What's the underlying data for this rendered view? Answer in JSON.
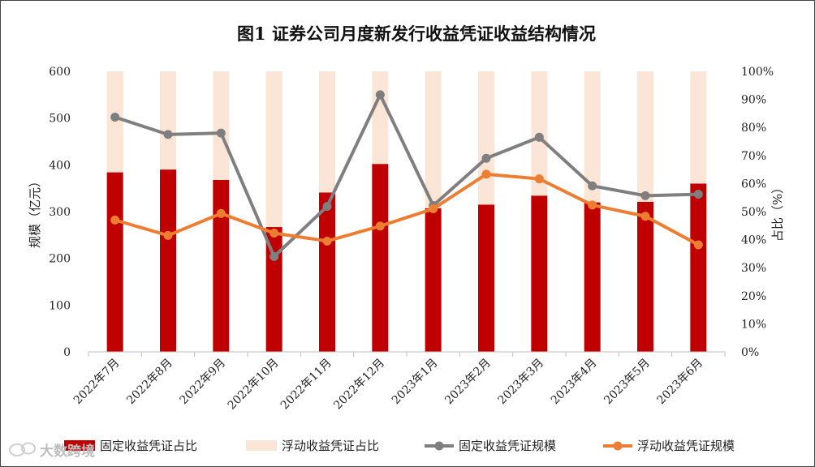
{
  "chart_data": {
    "type": "bar",
    "title": "图1  证券公司月度新发行收益凭证收益结构情况",
    "categories": [
      "2022年7月",
      "2022年8月",
      "2022年9月",
      "2022年10月",
      "2022年11月",
      "2022年12月",
      "2023年1月",
      "2023年2月",
      "2023年3月",
      "2023年4月",
      "2023年5月",
      "2023年6月"
    ],
    "y_left": {
      "label": "规模（亿元）",
      "ticks": [
        "0",
        "100",
        "200",
        "300",
        "400",
        "500",
        "600"
      ],
      "range": [
        0,
        600
      ]
    },
    "y_right": {
      "label": "占比（%）",
      "ticks": [
        "0%",
        "10%",
        "20%",
        "30%",
        "40%",
        "50%",
        "60%",
        "70%",
        "80%",
        "90%",
        "100%"
      ],
      "range": [
        0,
        100
      ]
    },
    "series": [
      {
        "name": "固定收益凭证占比",
        "type": "stacked-bar",
        "axis": "right",
        "color": "#c00000",
        "values": [
          64,
          65,
          61.3,
          44.5,
          56.8,
          67,
          51.2,
          52.5,
          55.7,
          53.3,
          53.5,
          60
        ]
      },
      {
        "name": "浮动收益凭证占比",
        "type": "stacked-bar",
        "axis": "right",
        "color": "#fbe5d6",
        "values": [
          36,
          35,
          38.7,
          55.5,
          43.2,
          33,
          48.8,
          47.5,
          44.3,
          46.7,
          46.5,
          40
        ]
      },
      {
        "name": "固定收益凭证规模",
        "type": "line",
        "axis": "left",
        "color": "#7f7f7f",
        "values": [
          502,
          465,
          468,
          204,
          311,
          550,
          313,
          414,
          459,
          355,
          334,
          337
        ]
      },
      {
        "name": "浮动收益凭证规模",
        "type": "line",
        "axis": "left",
        "color": "#ed7d31",
        "values": [
          282,
          249,
          296,
          254,
          237,
          269,
          306,
          380,
          370,
          314,
          290,
          229
        ]
      }
    ],
    "legend_position": "bottom",
    "grid": false
  },
  "watermark": {
    "text": "大数跨境",
    "icon": "chat-bubble-icon"
  }
}
